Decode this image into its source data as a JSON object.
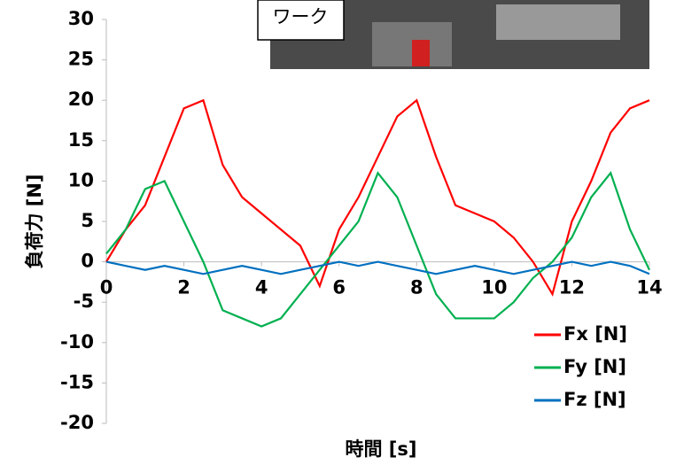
{
  "chart_data": {
    "type": "line",
    "x_label": "時間 [s]",
    "y_label": "負荷力 [N]",
    "annotations": [
      "ワーク"
    ],
    "x": [
      0,
      0.5,
      1,
      1.5,
      2,
      2.5,
      3,
      3.5,
      4,
      4.5,
      5,
      5.5,
      6,
      6.5,
      7,
      7.5,
      8,
      8.5,
      9,
      9.5,
      10,
      10.5,
      11,
      11.5,
      12,
      12.5,
      13,
      13.5,
      14
    ],
    "series": [
      {
        "name": "Fx [N]",
        "color": "#ff0000",
        "values": [
          0,
          4,
          7,
          13,
          19,
          20,
          12,
          8,
          6,
          4,
          2,
          -3,
          4,
          8,
          13,
          18,
          20,
          13,
          7,
          6,
          5,
          3,
          0,
          -4,
          5,
          10,
          16,
          19,
          20
        ]
      },
      {
        "name": "Fy [N]",
        "color": "#00b050",
        "values": [
          1,
          4,
          9,
          10,
          5,
          0,
          -6,
          -7,
          -8,
          -7,
          -4,
          -1,
          2,
          5,
          11,
          8,
          2,
          -4,
          -7,
          -7,
          -7,
          -5,
          -2,
          0,
          3,
          8,
          11,
          4,
          -1
        ]
      },
      {
        "name": "Fz [N]",
        "color": "#0070c0",
        "values": [
          0,
          -0.5,
          -1,
          -0.5,
          -1,
          -1.5,
          -1,
          -0.5,
          -1,
          -1.5,
          -1,
          -0.5,
          0,
          -0.5,
          0,
          -0.5,
          -1,
          -1.5,
          -1,
          -0.5,
          -1,
          -1.5,
          -1,
          -0.5,
          0,
          -0.5,
          0,
          -0.5,
          -1.5
        ]
      }
    ],
    "xlim": [
      0,
      14
    ],
    "xticks": [
      0,
      2,
      4,
      6,
      8,
      10,
      12,
      14
    ],
    "ylim": [
      -20,
      30
    ],
    "yticks": [
      -20,
      -15,
      -10,
      -5,
      0,
      5,
      10,
      15,
      20,
      25,
      30
    ],
    "legend": "lower right"
  }
}
